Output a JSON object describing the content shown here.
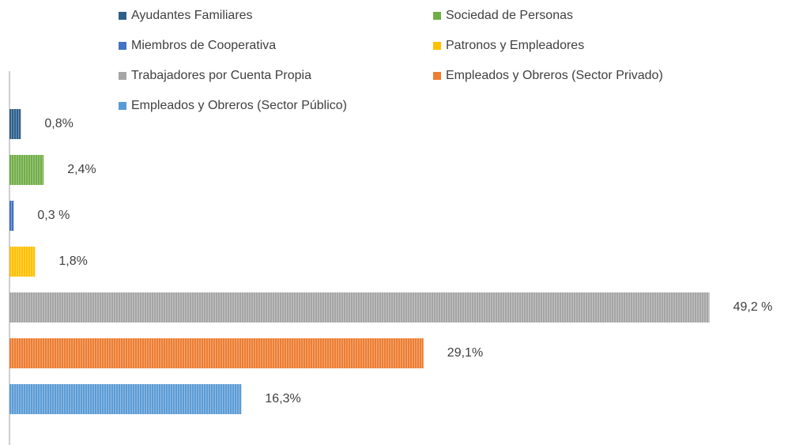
{
  "chart_data": {
    "type": "barh",
    "categories": [
      "Ayudantes Familiares",
      "Sociedad de Personas",
      "Miembros de Cooperativa",
      "Patronos y Empleadores",
      "Trabajadores por Cuenta Propia",
      "Empleados y Obreros (Sector Privado)",
      "Empleados y Obreros (Sector Público)"
    ],
    "values": [
      0.8,
      2.4,
      0.3,
      1.8,
      49.2,
      29.1,
      16.3
    ],
    "value_labels": [
      "0,8%",
      "2,4%",
      "0,3 %",
      "1,8%",
      "49,2 %",
      "29,1%",
      "16,3%"
    ],
    "colors": [
      "#2e5f8a",
      "#70ad47",
      "#4472c4",
      "#ffc000",
      "#a5a5a5",
      "#ed7d31",
      "#5b9bd5"
    ],
    "xlim": [
      0,
      50
    ],
    "legend": "top"
  }
}
